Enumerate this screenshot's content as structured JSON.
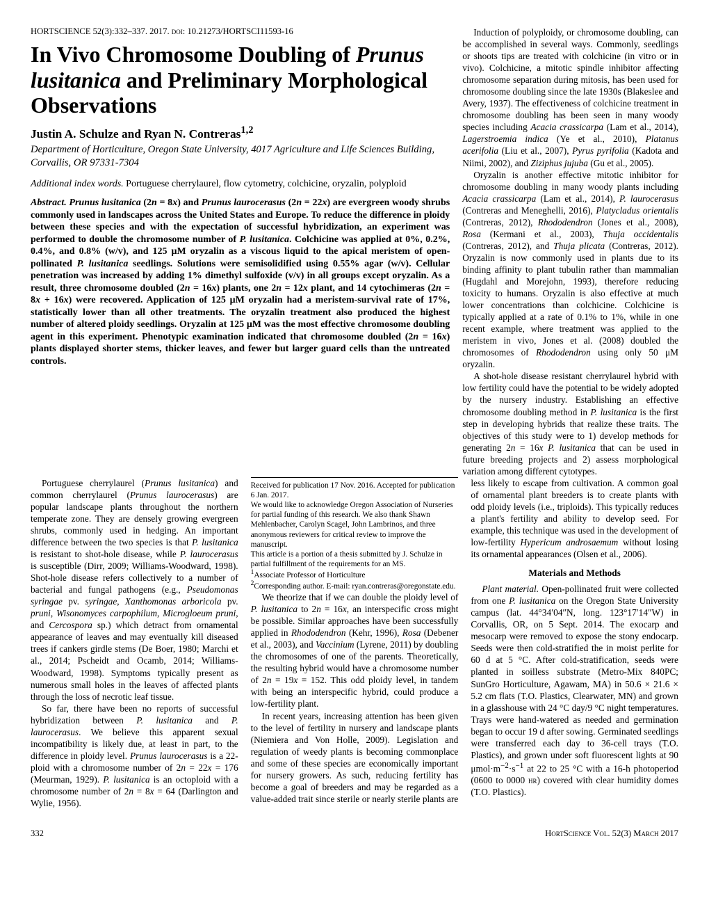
{
  "doi_line": "HORTSCIENCE 52(3):332–337. 2017. doi: 10.21273/HORTSCI11593-16",
  "title_html": "In Vivo Chromosome Doubling of <i>Prunus lusitanica</i> and Preliminary Morphological Observations",
  "authors_html": "Justin A. Schulze and Ryan N. Contreras<sup>1,2</sup>",
  "affiliation": "Department of Horticulture, Oregon State University, 4017 Agriculture and Life Sciences Building, Corvallis, OR 97331-7304",
  "indexwords_label": "Additional index words.",
  "indexwords_text": " Portuguese cherrylaurel, flow cytometry, colchicine, oryzalin, polyploid",
  "abstract_label": "Abstract.",
  "abstract_html": " <i>Prunus lusitanica</i> (2<i>n</i> = 8<i>x</i>) and <i>Prunus laurocerasus</i> (2<i>n</i> = 22<i>x</i>) are evergreen woody shrubs commonly used in landscapes across the United States and Europe. To reduce the difference in ploidy between these species and with the expectation of successful hybridization, an experiment was performed to double the chromosome number of <i>P. lusitanica</i>. Colchicine was applied at 0%, 0.2%, 0.4%, and 0.8% (w/v), and 125 μM oryzalin as a viscous liquid to the apical meristem of open-pollinated <i>P. lusitanica</i> seedlings. Solutions were semisolidified using 0.55% agar (w/v). Cellular penetration was increased by adding 1% dimethyl sulfoxide (v/v) in all groups except oryzalin. As a result, three chromosome doubled (2<i>n</i> = 16<i>x</i>) plants, one 2<i>n</i> = 12<i>x</i> plant, and 14 cytochimeras (2<i>n</i> = 8<i>x</i> + 16<i>x</i>) were recovered. Application of 125 μM oryzalin had a meristem-survival rate of 17%, statistically lower than all other treatments. The oryzalin treatment also produced the highest number of altered ploidy seedlings. Oryzalin at 125 μM was the most effective chromosome doubling agent in this experiment. Phenotypic examination indicated that chromosome doubled (2<i>n</i> = 16<i>x</i>) plants displayed shorter stems, thicker leaves, and fewer but larger guard cells than the untreated controls.",
  "right_col_paras": [
    "Induction of polyploidy, or chromosome doubling, can be accomplished in several ways. Commonly, seedlings or shoots tips are treated with colchicine (in vitro or in vivo). Colchicine, a mitotic spindle inhibitor affecting chromosome separation during mitosis, has been used for chromosome doubling since the late 1930s (Blakeslee and Avery, 1937). The effectiveness of colchicine treatment in chromosome doubling has been seen in many woody species including <i>Acacia crassicarpa</i> (Lam et al., 2014), <i>Lagerstroemia indica</i> (Ye et al., 2010), <i>Platanus acerifolia</i> (Liu et al., 2007), <i>Pyrus pyrifolia</i> (Kadota and Niimi, 2002), and <i>Ziziphus jujuba</i> (Gu et al., 2005).",
    "Oryzalin is another effective mitotic inhibitor for chromosome doubling in many woody plants including <i>Acacia crassicarpa</i> (Lam et al., 2014), <i>P. laurocerasus</i> (Contreras and Meneghelli, 2016), <i>Platycladus orientalis</i> (Contreras, 2012), <i>Rhododendron</i> (Jones et al., 2008), <i>Rosa</i> (Kermani et al., 2003), <i>Thuja occidentalis</i> (Contreras, 2012), and <i>Thuja plicata</i> (Contreras, 2012). Oryzalin is now commonly used in plants due to its binding affinity to plant tubulin rather than mammalian (Hugdahl and Morejohn, 1993), therefore reducing toxicity to humans. Oryzalin is also effective at much lower concentrations than colchicine. Colchicine is typically applied at a rate of 0.1% to 1%, while in one recent example, where treatment was applied to the meristem in vivo, Jones et al. (2008) doubled the chromosomes of <i>Rhododendron</i> using only 50 μM oryzalin.",
    "A shot-hole disease resistant cherrylaurel hybrid with low fertility could have the potential to be widely adopted by the nursery industry. Establishing an effective chromosome doubling method in <i>P. lusitanica</i> is the first step in developing hybrids that realize these traits. The objectives of this study were to 1) develop methods for generating 2<i>n</i> = 16<i>x</i> <i>P. lusitanica</i> that can be used in future breeding projects and 2) assess morphological variation among different cytotypes."
  ],
  "body_paras": [
    "Portuguese cherrylaurel (<i>Prunus lusitanica</i>) and common cherrylaurel (<i>Prunus laurocerasus</i>) are popular landscape plants throughout the northern temperate zone. They are densely growing evergreen shrubs, commonly used in hedging. An important difference between the two species is that <i>P. lusitanica</i> is resistant to shot-hole disease, while <i>P. laurocerasus</i> is susceptible (Dirr, 2009; Williams-Woodward, 1998). Shot-hole disease refers collectively to a number of bacterial and fungal pathogens (e.g., <i>Pseudomonas syringae</i> pv. <i>syringae</i>, <i>Xanthomonas arboricola</i> pv. <i>pruni</i>, <i>Wisonomyces carpophilum</i>, <i>Microgloeum pruni</i>, and <i>Cercospora</i> sp.) which detract from ornamental appearance of leaves and may eventually kill diseased trees if cankers girdle stems (De Boer, 1980; Marchi et al., 2014; Pscheidt and Ocamb, 2014; Williams-Woodward, 1998). Symptoms typically present as numerous small holes in the leaves of affected plants through the loss of necrotic leaf tissue.",
    "So far, there have been no reports of successful hybridization between <i>P. lusitanica</i> and <i>P. laurocerasus</i>. We believe this apparent sexual incompatibility is likely due, at least in part, to the difference in ploidy level. <i>Prunus laurocerasus</i> is a 22-ploid with a chromosome number of 2<i>n</i> = 22<i>x</i> = 176 (Meurman, 1929). <i>P. lusitanica</i> is an octoploid with a chromosome number of 2<i>n</i> = 8<i>x</i> = 64 (Darlington and Wylie, 1956).",
    "We theorize that if we can double the ploidy level of <i>P. lusitanica</i> to 2<i>n</i> = 16<i>x</i>, an interspecific cross might be possible. Similar approaches have been successfully applied in <i>Rhododendron</i> (Kehr, 1996), <i>Rosa</i> (Debener et al., 2003), and <i>Vaccinium</i> (Lyrene, 2011) by doubling the chromosomes of one of the parents. Theoretically, the resulting hybrid would have a chromosome number of 2<i>n</i> = 19<i>x</i> = 152. This odd ploidy level, in tandem with being an interspecific hybrid, could produce a low-fertility plant.",
    "In recent years, increasing attention has been given to the level of fertility in nursery and landscape plants (Niemiera and Von Holle, 2009). Legislation and regulation of weedy plants is becoming commonplace and some of these species are economically important for nursery growers. As such, reducing fertility has become a goal of breeders and may be regarded as a value-added trait since sterile or nearly sterile plants are less likely to escape from cultivation. A common goal of ornamental plant breeders is to create plants with odd ploidy levels (i.e., triploids). This typically reduces a plant's fertility and ability to develop seed. For example, this technique was used in the development of low-fertility <i>Hypericum androsaemum</i> without losing its ornamental appearances (Olsen et al., 2006)."
  ],
  "materials_heading": "Materials and Methods",
  "materials_para_html": "<i>Plant material.</i> Open-pollinated fruit were collected from one <i>P. lusitanica</i> on the Oregon State University campus (lat. 44°34′04″N, long. 123°17′14″W) in Corvallis, OR, on 5 Sept. 2014. The exocarp and mesocarp were removed to expose the stony endocarp. Seeds were then cold-stratified the in moist perlite for 60 d at 5 °C. After cold-stratification, seeds were planted in soilless substrate (Metro-Mix 840PC; SunGro Horticulture, Agawam, MA) in 50.6 × 21.6 × 5.2 cm flats (T.O. Plastics, Clearwater, MN) and grown in a glasshouse with 24 °C day/9 °C night temperatures. Trays were hand-watered as needed and germination began to occur 19 d after sowing. Germinated seedlings were transferred each day to 36-cell trays (T.O. Plastics), and grown under soft fluorescent lights at 90 μmol·m<sup>−2</sup>·s<sup>−1</sup> at 22 to 25 °C with a 16-h photoperiod (0600 to 0000 <span class=\"smallcaps\">hr</span>) covered with clear humidity domes (T.O. Plastics).",
  "footnotes": [
    "Received for publication 17 Nov. 2016. Accepted for publication 6 Jan. 2017.",
    "We would like to acknowledge Oregon Association of Nurseries for partial funding of this research. We also thank Shawn Mehlenbacher, Carolyn Scagel, John Lambrinos, and three anonymous reviewers for critical review to improve the manuscript.",
    "This article is a portion of a thesis submitted by J. Schulze in partial fulfillment of the requirements for an MS.",
    "<sup>1</sup>Associate Professor of Horticulture",
    "<sup>2</sup>Corresponding author. E-mail: ryan.contreras@oregonstate.edu."
  ],
  "page_number": "332",
  "footer_right_html": "H<span class=\"smallcaps\">ort</span>S<span class=\"smallcaps\">cience</span> V<span class=\"smallcaps\">ol</span>. 52(3) M<span class=\"smallcaps\">arch</span> 2017"
}
